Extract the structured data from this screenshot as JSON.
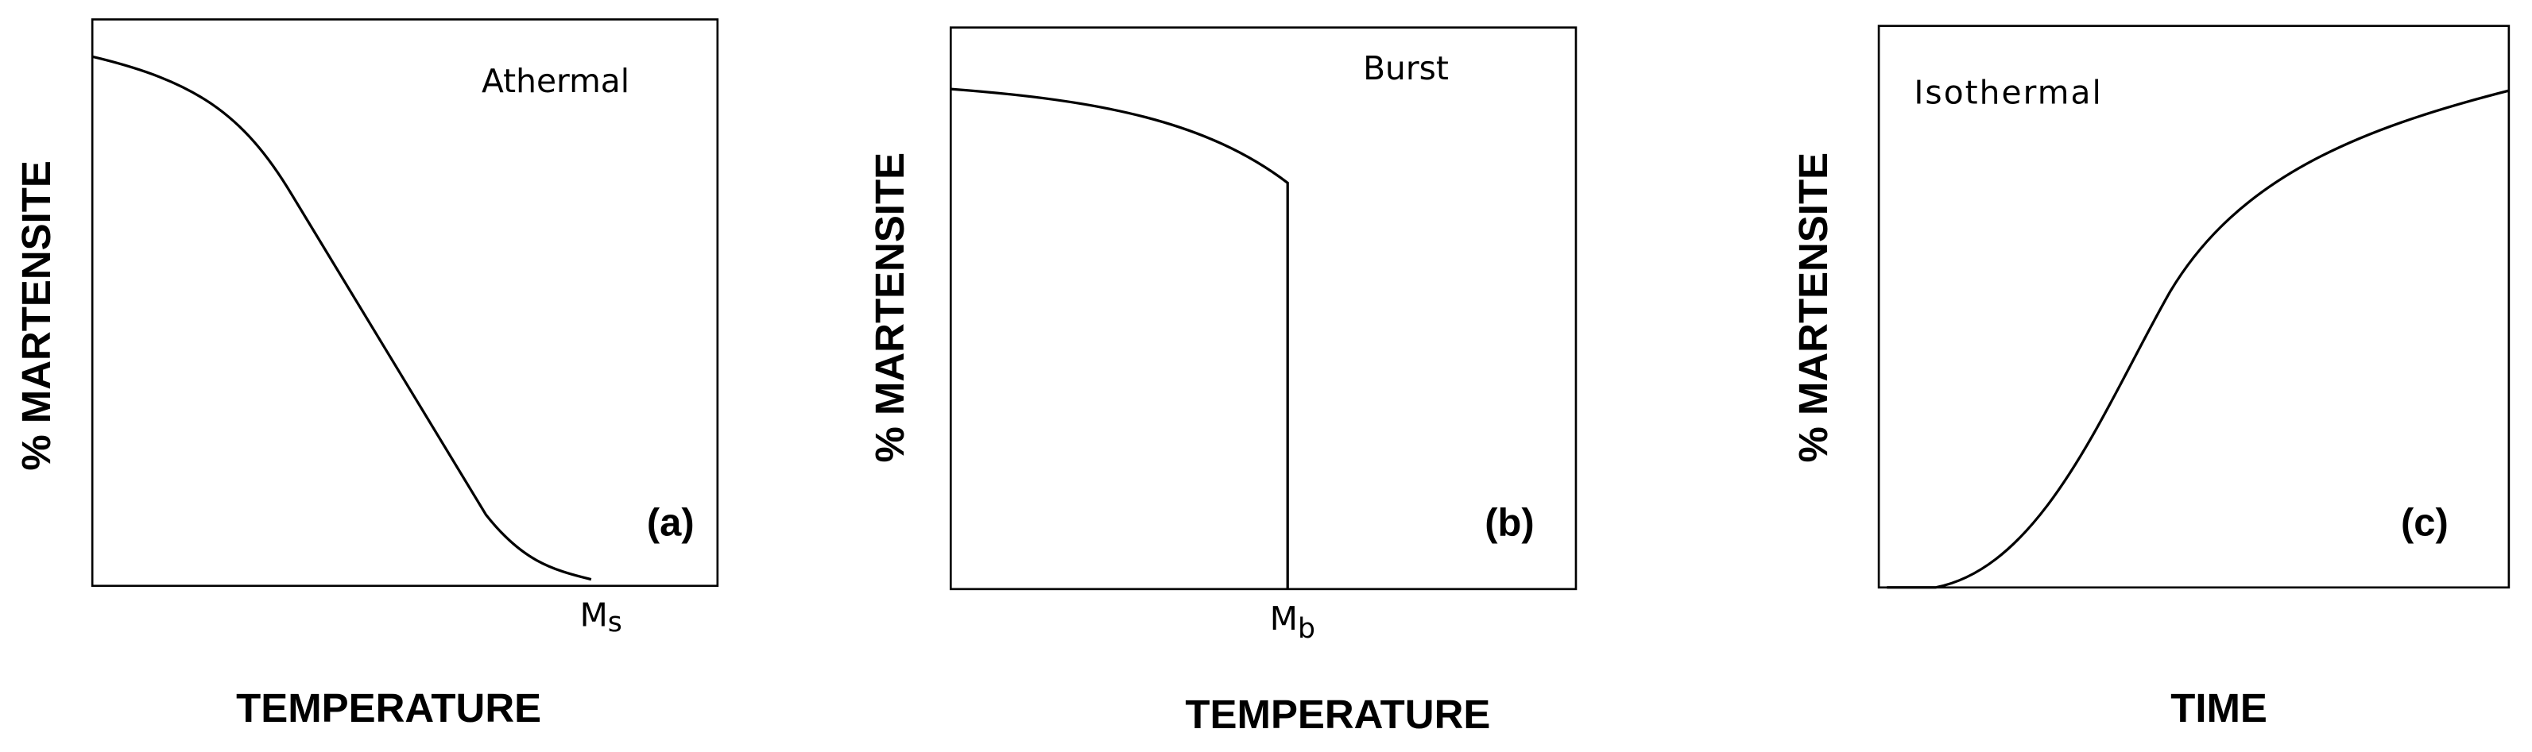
{
  "panels": [
    {
      "annotation": "Athermal",
      "tag": "(a)",
      "marker": {
        "main": "M",
        "sub": "s"
      },
      "y_label": "% MARTENSITE",
      "x_label": "TEMPERATURE"
    },
    {
      "annotation": "Burst",
      "tag": "(b)",
      "marker": {
        "main": "M",
        "sub": "b"
      },
      "y_label": "% MARTENSITE",
      "x_label": "TEMPERATURE"
    },
    {
      "annotation": "Isothermal",
      "tag": "(c)",
      "y_label": "% MARTENSITE",
      "x_label": "TIME"
    }
  ]
}
